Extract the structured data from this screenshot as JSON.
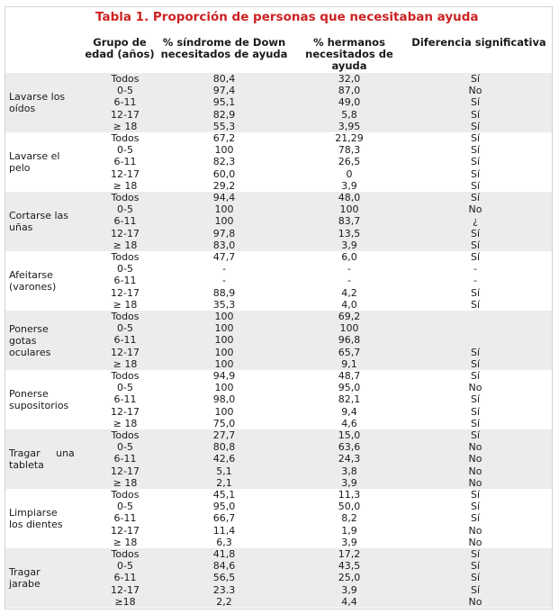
{
  "title": "Tabla 1. Proporción de personas que necesitaban ayuda",
  "headers": {
    "age": [
      "Grupo de",
      "edad (años)"
    ],
    "down": [
      "% síndrome de Down",
      "necesitados de ayuda"
    ],
    "siblings": [
      "% hermanos",
      "necesitados de",
      "ayuda"
    ],
    "difference": [
      "Diferencia significativa"
    ]
  },
  "groups": [
    {
      "label": [
        "Lavarse los",
        "oídos"
      ],
      "rows": [
        {
          "age": "Todos",
          "down": "80,4",
          "siblings": "32,0",
          "diff": "Sí"
        },
        {
          "age": "0-5",
          "down": "97,4",
          "siblings": "87,0",
          "diff": "No"
        },
        {
          "age": "6-11",
          "down": "95,1",
          "siblings": "49,0",
          "diff": "Sí"
        },
        {
          "age": "12-17",
          "down": "82,9",
          "siblings": "5,8",
          "diff": "Sí"
        },
        {
          "age": "≥ 18",
          "down": "55,3",
          "siblings": "3,95",
          "diff": "Sí"
        }
      ]
    },
    {
      "label": [
        "Lavarse el",
        "pelo"
      ],
      "rows": [
        {
          "age": "Todos",
          "down": "67,2",
          "siblings": "21,29",
          "diff": "Sí"
        },
        {
          "age": "0-5",
          "down": "100",
          "siblings": "78,3",
          "diff": "Sí"
        },
        {
          "age": "6-11",
          "down": "82,3",
          "siblings": "26,5",
          "diff": "Sí"
        },
        {
          "age": "12-17",
          "down": "60,0",
          "siblings": "0",
          "diff": "Sí"
        },
        {
          "age": "≥ 18",
          "down": "29,2",
          "siblings": "3,9",
          "diff": "Sí"
        }
      ]
    },
    {
      "label": [
        "Cortarse las",
        "uñas"
      ],
      "rows": [
        {
          "age": "Todos",
          "down": "94,4",
          "siblings": "48,0",
          "diff": "Sí"
        },
        {
          "age": "0-5",
          "down": "100",
          "siblings": "100",
          "diff": "No"
        },
        {
          "age": "6-11",
          "down": "100",
          "siblings": "83,7",
          "diff": "¿"
        },
        {
          "age": "12-17",
          "down": "97,8",
          "siblings": "13,5",
          "diff": "Sí"
        },
        {
          "age": "≥ 18",
          "down": "83,0",
          "siblings": "3,9",
          "diff": "Sí"
        }
      ]
    },
    {
      "label": [
        "Afeitarse",
        "(varones)"
      ],
      "rows": [
        {
          "age": "Todos",
          "down": "47,7",
          "siblings": "6,0",
          "diff": "Sí"
        },
        {
          "age": "0-5",
          "down": "-",
          "siblings": "-",
          "diff": "-"
        },
        {
          "age": "6-11",
          "down": "-",
          "siblings": "-",
          "diff": "-"
        },
        {
          "age": "12-17",
          "down": "88,9",
          "siblings": "4,2",
          "diff": "Sí"
        },
        {
          "age": "≥ 18",
          "down": "35,3",
          "siblings": "4,0",
          "diff": "Sí"
        }
      ]
    },
    {
      "label": [
        "Ponerse",
        "gotas",
        "oculares"
      ],
      "rows": [
        {
          "age": "Todos",
          "down": "100",
          "siblings": "69,2",
          "diff": ""
        },
        {
          "age": "0-5",
          "down": "100",
          "siblings": "100",
          "diff": ""
        },
        {
          "age": "6-11",
          "down": "100",
          "siblings": "96,8",
          "diff": ""
        },
        {
          "age": "12-17",
          "down": "100",
          "siblings": "65,7",
          "diff": "Sí"
        },
        {
          "age": "≥ 18",
          "down": "100",
          "siblings": "9,1",
          "diff": "Sí"
        }
      ]
    },
    {
      "label": [
        "Ponerse",
        "supositorios"
      ],
      "rows": [
        {
          "age": "Todos",
          "down": "94,9",
          "siblings": "48,7",
          "diff": "Sí"
        },
        {
          "age": "0-5",
          "down": "100",
          "siblings": "95,0",
          "diff": "No"
        },
        {
          "age": "6-11",
          "down": "98,0",
          "siblings": "82,1",
          "diff": "Sí"
        },
        {
          "age": "12-17",
          "down": "100",
          "siblings": "9,4",
          "diff": "Sí"
        },
        {
          "age": "≥ 18",
          "down": "75,0",
          "siblings": "4,6",
          "diff": "Sí"
        }
      ]
    },
    {
      "label": [
        "Tragar     una",
        "tableta"
      ],
      "rows": [
        {
          "age": "Todos",
          "down": "27,7",
          "siblings": "15,0",
          "diff": "Sí"
        },
        {
          "age": "0-5",
          "down": "80,8",
          "siblings": "63,6",
          "diff": "No"
        },
        {
          "age": "6-11",
          "down": "42,6",
          "siblings": "24,3",
          "diff": "No"
        },
        {
          "age": "12-17",
          "down": "5,1",
          "siblings": "3,8",
          "diff": "No"
        },
        {
          "age": "≥ 18",
          "down": "2,1",
          "siblings": "3,9",
          "diff": "No"
        }
      ]
    },
    {
      "label": [
        "Limpiarse",
        "los dientes"
      ],
      "rows": [
        {
          "age": "Todos",
          "down": "45,1",
          "siblings": "11,3",
          "diff": "Sí"
        },
        {
          "age": "0-5",
          "down": "95,0",
          "siblings": "50,0",
          "diff": "Sí"
        },
        {
          "age": "6-11",
          "down": "66,7",
          "siblings": "8,2",
          "diff": "Sí"
        },
        {
          "age": "12-17",
          "down": "11,4",
          "siblings": "1,9",
          "diff": "No"
        },
        {
          "age": "≥ 18",
          "down": "6,3",
          "siblings": "3,9",
          "diff": "No"
        }
      ]
    },
    {
      "label": [
        "Tragar",
        "jarabe"
      ],
      "rows": [
        {
          "age": "Todos",
          "down": "41,8",
          "siblings": "17,2",
          "diff": "Sí"
        },
        {
          "age": "0-5",
          "down": "84,6",
          "siblings": "43,5",
          "diff": "Sí"
        },
        {
          "age": "6-11",
          "down": "56,5",
          "siblings": "25,0",
          "diff": "Sí"
        },
        {
          "age": "12-17",
          "down": "23.3",
          "siblings": "3,9",
          "diff": "Sí"
        },
        {
          "age": "≥18",
          "down": "2,2",
          "siblings": "4,4",
          "diff": "No"
        }
      ]
    }
  ]
}
